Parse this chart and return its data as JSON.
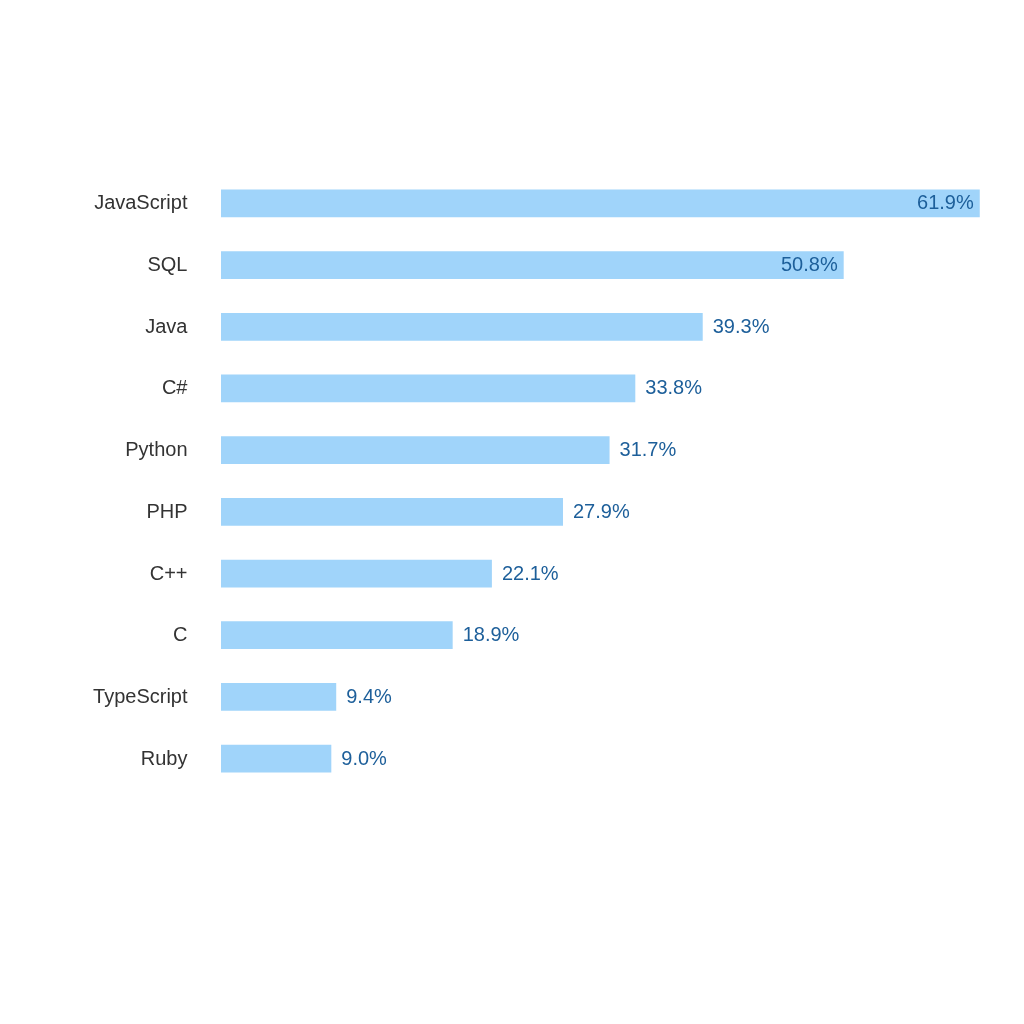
{
  "chart_data": {
    "type": "bar",
    "orientation": "horizontal",
    "categories": [
      "JavaScript",
      "SQL",
      "Java",
      "C#",
      "Python",
      "PHP",
      "C++",
      "C",
      "TypeScript",
      "Ruby"
    ],
    "values": [
      61.9,
      50.8,
      39.3,
      33.8,
      31.7,
      27.9,
      22.1,
      18.9,
      9.4,
      9.0
    ],
    "value_labels": [
      "61.9%",
      "50.8%",
      "39.3%",
      "33.8%",
      "31.7%",
      "27.9%",
      "22.1%",
      "18.9%",
      "9.4%",
      "9.0%"
    ],
    "color": "#a0d4fa",
    "grid": false
  }
}
